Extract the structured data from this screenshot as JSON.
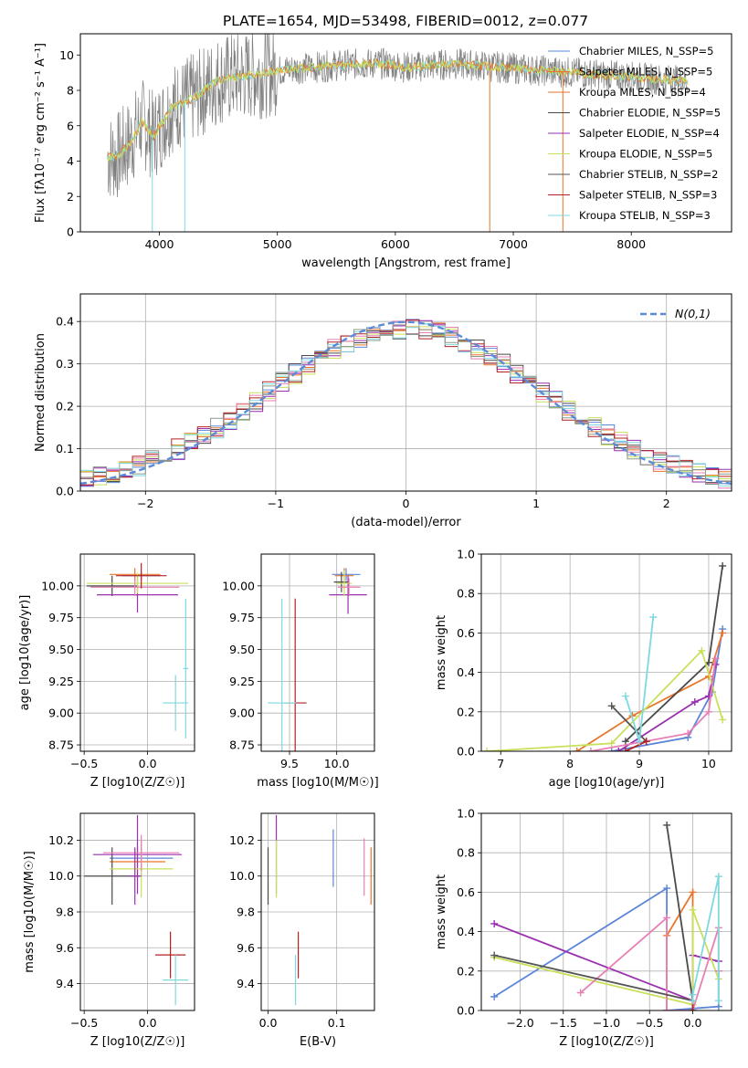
{
  "title": "PLATE=1654, MJD=53498, FIBERID=0012, z=0.077",
  "colors": {
    "chabrier_miles": "#5b86d8",
    "salpeter_miles": "#e8762a",
    "kroupa_miles": "#e8762a",
    "chabrier_elodie": "#4a4a4a",
    "salpeter_elodie": "#9a2fb0",
    "kroupa_elodie": "#c8e05a",
    "chabrier_stelib": "#555555",
    "salpeter_stelib": "#b22222",
    "kroupa_stelib": "#7fd8e0",
    "pink": "#e87fb4",
    "gray_spec": "#7f7f7f",
    "normal": "#5b8bd8",
    "grid": "#b0b0b0"
  },
  "chart_data": [
    {
      "id": "spectrum",
      "type": "line",
      "xlabel": "wavelength [Angstrom, rest frame]",
      "ylabel": "Flux [fλ10⁻¹⁷ erg cm⁻² s⁻¹ A⁻¹]",
      "xlim": [
        3330,
        8850
      ],
      "ylim": [
        0,
        11.2
      ],
      "xticks": [
        4000,
        5000,
        6000,
        7000,
        8000
      ],
      "yticks": [
        0,
        2,
        4,
        6,
        8,
        10
      ],
      "grid": false,
      "legend_position": "right",
      "legend": [
        "Chabrier MILES, N_SSP=5",
        "Salpeter MILES, N_SSP=5",
        "Kroupa MILES, N_SSP=4",
        "Chabrier ELODIE, N_SSP=5",
        "Salpeter ELODIE, N_SSP=4",
        "Kroupa ELODIE, N_SSP=5",
        "Chabrier STELIB, N_SSP=2",
        "Salpeter STELIB, N_SSP=3",
        "Kroupa STELIB, N_SSP=3"
      ],
      "legend_colors": [
        "#5b86d8",
        "#e8762a",
        "#e8762a",
        "#4a4a4a",
        "#9a2fb0",
        "#c8e05a",
        "#555555",
        "#b22222",
        "#7fd8e0"
      ],
      "continuum": [
        [
          3550,
          4.2
        ],
        [
          3650,
          4.3
        ],
        [
          3750,
          5.0
        ],
        [
          3850,
          6.2
        ],
        [
          3950,
          5.4
        ],
        [
          4100,
          7.0
        ],
        [
          4300,
          7.6
        ],
        [
          4500,
          8.6
        ],
        [
          4700,
          8.8
        ],
        [
          4900,
          9.0
        ],
        [
          5100,
          9.2
        ],
        [
          5300,
          9.3
        ],
        [
          5500,
          9.4
        ],
        [
          5700,
          9.5
        ],
        [
          5900,
          9.5
        ],
        [
          6100,
          9.3
        ],
        [
          6300,
          9.4
        ],
        [
          6500,
          9.5
        ],
        [
          6700,
          9.4
        ],
        [
          6900,
          9.3
        ],
        [
          7100,
          9.2
        ],
        [
          7300,
          9.1
        ],
        [
          7500,
          9.0
        ],
        [
          7700,
          8.9
        ],
        [
          7900,
          8.8
        ],
        [
          8100,
          8.7
        ],
        [
          8300,
          8.6
        ],
        [
          8500,
          8.5
        ]
      ]
    },
    {
      "id": "residuals",
      "type": "histogram",
      "xlabel": "(data-model)/error",
      "ylabel": "Normed distribution",
      "xlim": [
        -2.5,
        2.5
      ],
      "ylim": [
        0,
        0.465
      ],
      "xticks": [
        -2,
        -1,
        0,
        1,
        2
      ],
      "yticks": [
        0.0,
        0.1,
        0.2,
        0.3,
        0.4
      ],
      "grid": true,
      "bin_width": 0.1,
      "legend": "N(0,1)",
      "legend_position": "top-right",
      "normal": {
        "mu": 0,
        "sigma": 1
      }
    },
    {
      "id": "age_vs_Z",
      "type": "scatter",
      "xlabel": "Z [log10(Z/Z☉)]",
      "ylabel": "age  [log10(age/yr)]",
      "xlim": [
        -0.53,
        0.37
      ],
      "ylim": [
        8.7,
        10.25
      ],
      "xticks": [
        -0.5,
        0.0
      ],
      "xticklabels": [
        "−0.5",
        "0.0"
      ],
      "yticks": [
        8.75,
        9.0,
        9.25,
        9.5,
        9.75,
        10.0
      ],
      "grid": true,
      "crosses": [
        {
          "x": -0.05,
          "y": 10.08,
          "xerr": 0.15,
          "yerr": 0.03,
          "color": "#5b86d8"
        },
        {
          "x": -0.1,
          "y": 10.09,
          "xerr": 0.2,
          "yerr": 0.05,
          "color": "#e8762a"
        },
        {
          "x": -0.28,
          "y": 10.0,
          "xerr": 0.2,
          "yerr": 0.08,
          "color": "#4a4a4a"
        },
        {
          "x": -0.08,
          "y": 9.93,
          "xerr": 0.32,
          "yerr": 0.14,
          "color": "#9a2fb0"
        },
        {
          "x": -0.08,
          "y": 10.02,
          "xerr": 0.4,
          "yerr": 0.08,
          "color": "#c8e05a"
        },
        {
          "x": -0.1,
          "y": 9.99,
          "xerr": 0.35,
          "yerr": 0.07,
          "color": "#e87fb4"
        },
        {
          "x": -0.05,
          "y": 10.08,
          "xerr": 0.2,
          "yerr": 0.1,
          "color": "#b22222"
        },
        {
          "x": 0.22,
          "y": 9.08,
          "xerr": 0.1,
          "yerr": 0.22,
          "color": "#7fd8e0"
        },
        {
          "x": 0.3,
          "y": 9.35,
          "xerr": 0.02,
          "yerr": 0.55,
          "color": "#7fd8e0"
        }
      ]
    },
    {
      "id": "age_vs_mass",
      "type": "scatter",
      "xlabel": "mass [log10(M/M☉)]",
      "xlim": [
        9.2,
        10.4
      ],
      "ylim": [
        8.7,
        10.25
      ],
      "xticks": [
        9.5,
        10.0
      ],
      "xticklabels": [
        "9.5",
        "10.0"
      ],
      "yticks": [
        8.75,
        9.0,
        9.25,
        9.5,
        9.75,
        10.0
      ],
      "grid": true,
      "crosses": [
        {
          "x": 10.1,
          "y": 10.09,
          "xerr": 0.15,
          "yerr": 0.05,
          "color": "#5b86d8"
        },
        {
          "x": 10.08,
          "y": 10.08,
          "xerr": 0.1,
          "yerr": 0.06,
          "color": "#e8762a"
        },
        {
          "x": 10.05,
          "y": 10.03,
          "xerr": 0.08,
          "yerr": 0.08,
          "color": "#4a4a4a"
        },
        {
          "x": 10.12,
          "y": 9.93,
          "xerr": 0.2,
          "yerr": 0.15,
          "color": "#9a2fb0"
        },
        {
          "x": 10.08,
          "y": 10.02,
          "xerr": 0.08,
          "yerr": 0.1,
          "color": "#c8e05a"
        },
        {
          "x": 10.13,
          "y": 9.99,
          "xerr": 0.12,
          "yerr": 0.07,
          "color": "#e87fb4"
        },
        {
          "x": 9.56,
          "y": 9.08,
          "xerr": 0.12,
          "yerr": 0.82,
          "color": "#b22222"
        },
        {
          "x": 9.42,
          "y": 9.08,
          "xerr": 0.15,
          "yerr": 0.82,
          "color": "#7fd8e0"
        }
      ]
    },
    {
      "id": "weight_vs_age",
      "type": "line",
      "xlabel": "age  [log10(age/yr)]",
      "ylabel": "mass weight",
      "xlim": [
        6.72,
        10.33
      ],
      "ylim": [
        0,
        1
      ],
      "xticks": [
        7,
        8,
        9,
        10
      ],
      "yticks": [
        0.0,
        0.2,
        0.4,
        0.6,
        0.8,
        1.0
      ],
      "grid": true,
      "series": [
        {
          "color": "#5b86d8",
          "x": [
            8.6,
            9.7,
            10.05,
            10.2
          ],
          "y": [
            0.0,
            0.07,
            0.3,
            0.62
          ]
        },
        {
          "color": "#e8762a",
          "x": [
            8.1,
            8.9,
            10.0,
            10.2
          ],
          "y": [
            0.0,
            0.18,
            0.38,
            0.6
          ]
        },
        {
          "color": "#4a4a4a",
          "x": [
            8.8,
            10.0,
            10.2
          ],
          "y": [
            0.05,
            0.45,
            0.94
          ]
        },
        {
          "color": "#9a2fb0",
          "x": [
            8.7,
            9.8,
            10.0,
            10.1
          ],
          "y": [
            0.0,
            0.25,
            0.28,
            0.44
          ]
        },
        {
          "color": "#c8e05a",
          "x": [
            6.8,
            8.6,
            9.9,
            10.2
          ],
          "y": [
            0.0,
            0.04,
            0.51,
            0.16
          ]
        },
        {
          "color": "#e87fb4",
          "x": [
            8.3,
            9.7,
            10.0,
            10.1
          ],
          "y": [
            0.0,
            0.09,
            0.2,
            0.47
          ]
        },
        {
          "color": "#555555",
          "x": [
            8.6,
            9.1
          ],
          "y": [
            0.23,
            0.05
          ]
        },
        {
          "color": "#b22222",
          "x": [
            8.8,
            9.1
          ],
          "y": [
            0.0,
            0.05
          ]
        },
        {
          "color": "#7fd8e0",
          "x": [
            8.8,
            9.0,
            9.2
          ],
          "y": [
            0.28,
            0.05,
            0.68
          ]
        }
      ]
    },
    {
      "id": "mass_vs_Z",
      "type": "scatter",
      "xlabel": "Z [log10(Z/Z☉)]",
      "ylabel": "mass [log10(M/M☉)]",
      "xlim": [
        -0.53,
        0.37
      ],
      "ylim": [
        9.25,
        10.35
      ],
      "xticks": [
        -0.5,
        0.0
      ],
      "xticklabels": [
        "−0.5",
        "0.0"
      ],
      "yticks": [
        9.4,
        9.6,
        9.8,
        10.0,
        10.2
      ],
      "grid": true,
      "crosses": [
        {
          "x": -0.05,
          "y": 10.1,
          "xerr": 0.25,
          "yerr": 0.1,
          "color": "#5b86d8"
        },
        {
          "x": -0.08,
          "y": 10.08,
          "xerr": 0.22,
          "yerr": 0.09,
          "color": "#e8762a"
        },
        {
          "x": -0.28,
          "y": 10.0,
          "xerr": 0.22,
          "yerr": 0.16,
          "color": "#4a4a4a"
        },
        {
          "x": -0.08,
          "y": 10.12,
          "xerr": 0.35,
          "yerr": 0.22,
          "color": "#9a2fb0"
        },
        {
          "x": -0.05,
          "y": 10.04,
          "xerr": 0.25,
          "yerr": 0.16,
          "color": "#c8e05a"
        },
        {
          "x": -0.05,
          "y": 10.13,
          "xerr": 0.3,
          "yerr": 0.1,
          "color": "#e87fb4"
        },
        {
          "x": 0.18,
          "y": 9.56,
          "xerr": 0.12,
          "yerr": 0.13,
          "color": "#b22222"
        },
        {
          "x": 0.22,
          "y": 9.42,
          "xerr": 0.1,
          "yerr": 0.14,
          "color": "#7fd8e0"
        },
        {
          "x": -0.1,
          "y": 10.0,
          "xerr": 0.05,
          "yerr": 0.16,
          "color": "#9a2fb0"
        }
      ]
    },
    {
      "id": "mass_vs_ebv",
      "type": "scatter",
      "xlabel": "E(B-V)",
      "xlim": [
        -0.01,
        0.155
      ],
      "ylim": [
        9.25,
        10.35
      ],
      "xticks": [
        0.0,
        0.1
      ],
      "xticklabels": [
        "0.0",
        "0.1"
      ],
      "yticks": [
        9.4,
        9.6,
        9.8,
        10.0,
        10.2
      ],
      "grid": true,
      "crosses": [
        {
          "x": 0.095,
          "y": 10.1,
          "xerr": 0.0,
          "yerr": 0.16,
          "color": "#5b86d8"
        },
        {
          "x": 0.15,
          "y": 10.0,
          "xerr": 0.0,
          "yerr": 0.16,
          "color": "#e8762a"
        },
        {
          "x": 0.0,
          "y": 10.0,
          "xerr": 0.0,
          "yerr": 0.16,
          "color": "#4a4a4a"
        },
        {
          "x": 0.012,
          "y": 10.12,
          "xerr": 0.0,
          "yerr": 0.22,
          "color": "#9a2fb0"
        },
        {
          "x": 0.012,
          "y": 10.04,
          "xerr": 0.0,
          "yerr": 0.16,
          "color": "#c8e05a"
        },
        {
          "x": 0.14,
          "y": 10.05,
          "xerr": 0.0,
          "yerr": 0.16,
          "color": "#e87fb4"
        },
        {
          "x": 0.044,
          "y": 9.56,
          "xerr": 0.0,
          "yerr": 0.13,
          "color": "#b22222"
        },
        {
          "x": 0.04,
          "y": 9.42,
          "xerr": 0.0,
          "yerr": 0.14,
          "color": "#7fd8e0"
        }
      ]
    },
    {
      "id": "weight_vs_Z",
      "type": "line",
      "xlabel": "Z [log10(Z/Z☉)]",
      "ylabel": "mass weight",
      "xlim": [
        -2.45,
        0.45
      ],
      "ylim": [
        0,
        1
      ],
      "xticks": [
        -2.0,
        -1.5,
        -1.0,
        -0.5,
        0.0
      ],
      "xticklabels": [
        "−2.0",
        "−1.5",
        "−1.0",
        "−0.5",
        "0.0"
      ],
      "yticks": [
        0.0,
        0.2,
        0.4,
        0.6,
        0.8,
        1.0
      ],
      "grid": true,
      "series": [
        {
          "color": "#5b86d8",
          "x": [
            -2.3,
            -0.3,
            -0.3,
            0.3,
            0.3
          ],
          "y": [
            0.07,
            0.62,
            0.0,
            0.02,
            0.2
          ]
        },
        {
          "color": "#e8762a",
          "x": [
            -0.3,
            -0.3,
            0.0,
            0.0
          ],
          "y": [
            0.0,
            0.38,
            0.6,
            0.0
          ]
        },
        {
          "color": "#4a4a4a",
          "x": [
            -0.3,
            0.0,
            0.0
          ],
          "y": [
            0.94,
            0.05,
            0.05
          ]
        },
        {
          "color": "#9a2fb0",
          "x": [
            -2.3,
            0.0,
            0.0,
            0.3
          ],
          "y": [
            0.44,
            0.05,
            0.28,
            0.25
          ]
        },
        {
          "color": "#c8e05a",
          "x": [
            -2.3,
            0.0,
            0.0,
            0.3
          ],
          "y": [
            0.27,
            0.03,
            0.51,
            0.16
          ]
        },
        {
          "color": "#e87fb4",
          "x": [
            -1.3,
            -0.3,
            -0.3,
            0.0,
            0.3,
            0.3
          ],
          "y": [
            0.09,
            0.47,
            0.0,
            0.0,
            0.42,
            0.2
          ]
        },
        {
          "color": "#555555",
          "x": [
            -2.3,
            0.0
          ],
          "y": [
            0.28,
            0.05
          ]
        },
        {
          "color": "#b22222",
          "x": [
            0.0,
            0.0
          ],
          "y": [
            0.0,
            0.05
          ]
        },
        {
          "color": "#7fd8e0",
          "x": [
            0.0,
            0.0,
            0.3,
            0.3
          ],
          "y": [
            0.05,
            0.08,
            0.68,
            0.05
          ]
        }
      ]
    }
  ]
}
